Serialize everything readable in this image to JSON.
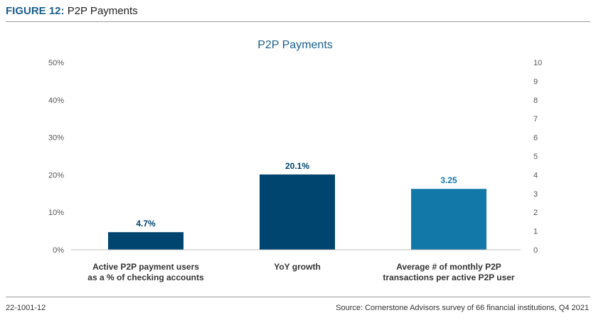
{
  "figure": {
    "label": "FIGURE 12:",
    "title": "P2P Payments"
  },
  "footer": {
    "code": "22-1001-12",
    "source": "Source: Cornerstone Advisors survey of 66 financial institutions, Q4 2021"
  },
  "colors": {
    "dark_navy": "#004470",
    "mid_blue": "#1278a8",
    "header_blue": "#1a5f8c"
  },
  "chart_data": {
    "type": "bar",
    "title": "P2P Payments",
    "categories": [
      [
        "Active P2P payment users",
        "as a % of checking accounts"
      ],
      [
        "YoY growth"
      ],
      [
        "Average # of monthly P2P",
        "transactions per active P2P user"
      ]
    ],
    "series": [
      {
        "axis": "left",
        "values": [
          4.7,
          20.1,
          null
        ],
        "labels": [
          "4.7%",
          "20.1%",
          ""
        ]
      },
      {
        "axis": "right",
        "values": [
          null,
          null,
          3.25
        ],
        "labels": [
          "",
          "",
          "3.25"
        ]
      }
    ],
    "y_left": {
      "min": 0,
      "max": 50,
      "ticks": [
        "0%",
        "10%",
        "20%",
        "30%",
        "40%",
        "50%"
      ]
    },
    "y_right": {
      "min": 0,
      "max": 10,
      "ticks": [
        "0",
        "1",
        "2",
        "3",
        "4",
        "5",
        "6",
        "7",
        "8",
        "9",
        "10"
      ]
    },
    "grid": false,
    "legend": "none"
  }
}
